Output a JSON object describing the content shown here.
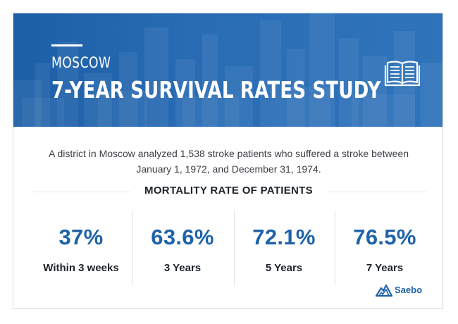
{
  "header": {
    "city": "MOSCOW",
    "title": "7-YEAR SURVIVAL RATES STUDY"
  },
  "intro": {
    "line1": "A district in Moscow analyzed 1,538 stroke patients who suffered a stroke between",
    "line2": "January 1, 1972, and December 31, 1974."
  },
  "section": {
    "title": "MORTALITY RATE OF PATIENTS"
  },
  "stats": [
    {
      "value": "37%",
      "label": "Within 3 weeks"
    },
    {
      "value": "63.6%",
      "label": "3 Years"
    },
    {
      "value": "72.1%",
      "label": "5 Years"
    },
    {
      "value": "76.5%",
      "label": "7 Years"
    }
  ],
  "brand": {
    "name": "Saebo"
  },
  "icons": {
    "header": "open-book-icon",
    "logo": "mountain-logo-icon"
  },
  "colors": {
    "banner": "#2a6db5",
    "accent": "#1e63a8",
    "text": "#1d2329"
  }
}
